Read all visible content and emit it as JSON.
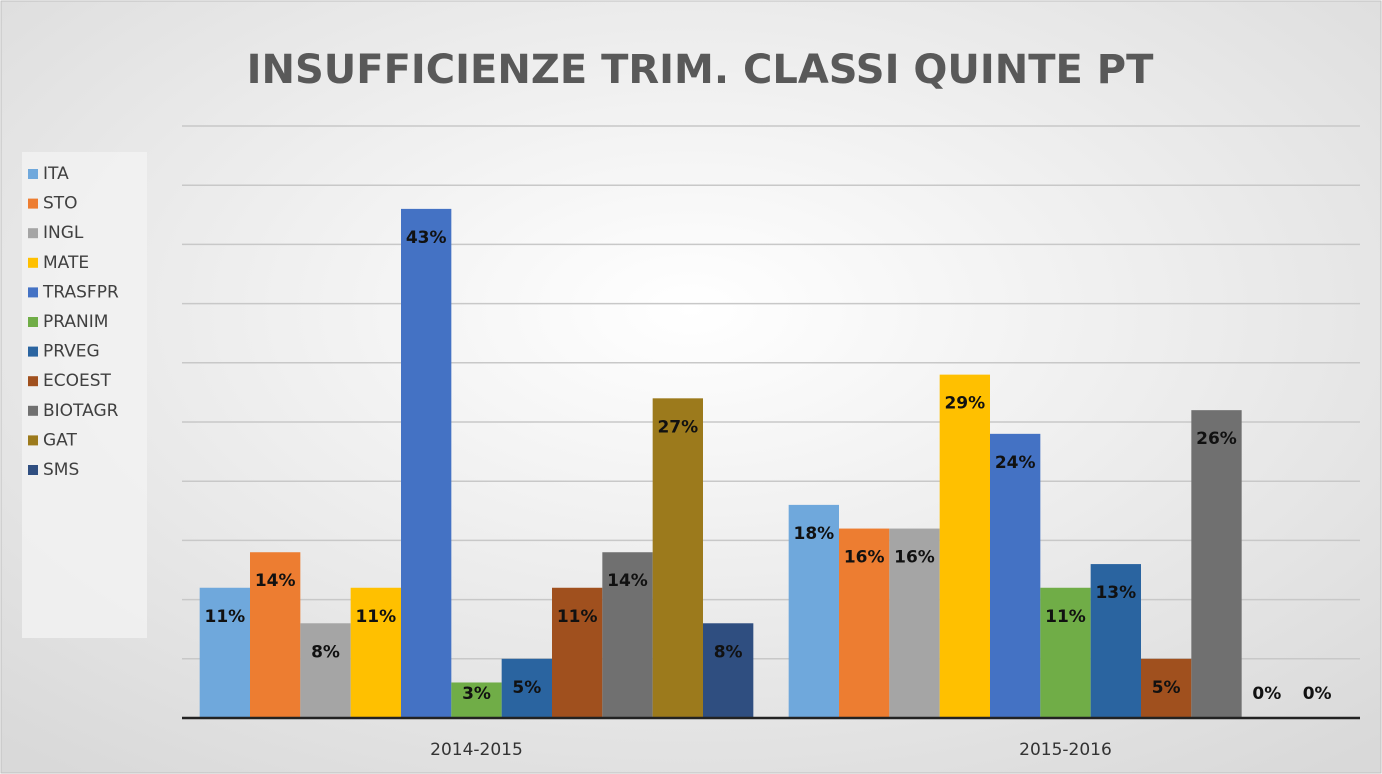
{
  "chart_data": {
    "type": "bar",
    "title": "INSUFFICIENZE TRIM. CLASSI QUINTE PT",
    "categories": [
      "2014-2015",
      "2015-2016"
    ],
    "series": [
      {
        "name": "ITA",
        "color": "#6fa8dc",
        "values": [
          11,
          18
        ],
        "value_labels": [
          "11%",
          "18%"
        ]
      },
      {
        "name": "STO",
        "color": "#ed7d31",
        "values": [
          14,
          16
        ],
        "value_labels": [
          "14%",
          "16%"
        ]
      },
      {
        "name": "INGL",
        "color": "#a5a5a5",
        "values": [
          8,
          16
        ],
        "value_labels": [
          "8%",
          "16%"
        ]
      },
      {
        "name": "MATE",
        "color": "#ffc000",
        "values": [
          11,
          29
        ],
        "value_labels": [
          "11%",
          "29%"
        ]
      },
      {
        "name": "TRASFPR",
        "color": "#4472c4",
        "values": [
          43,
          24
        ],
        "value_labels": [
          "43%",
          "24%"
        ]
      },
      {
        "name": "PRANIM",
        "color": "#70ad47",
        "values": [
          3,
          11
        ],
        "value_labels": [
          "3%",
          "11%"
        ]
      },
      {
        "name": "PRVEG",
        "color": "#2a64a0",
        "values": [
          5,
          13
        ],
        "value_labels": [
          "5%",
          "13%"
        ]
      },
      {
        "name": "ECOEST",
        "color": "#a0501e",
        "values": [
          11,
          5
        ],
        "value_labels": [
          "11%",
          "5%"
        ]
      },
      {
        "name": "BIOTAGR",
        "color": "#707070",
        "values": [
          14,
          26
        ],
        "value_labels": [
          "14%",
          "26%"
        ]
      },
      {
        "name": "GAT",
        "color": "#9c7a1c",
        "values": [
          27,
          0
        ],
        "value_labels": [
          "27%",
          "0%"
        ]
      },
      {
        "name": "SMS",
        "color": "#2f4e80",
        "values": [
          8,
          0
        ],
        "value_labels": [
          "8%",
          "0%"
        ]
      }
    ],
    "ylim": [
      0,
      50
    ],
    "yticks": [
      0,
      5,
      10,
      15,
      20,
      25,
      30,
      35,
      40,
      45,
      50
    ],
    "grid": true,
    "legend": "left"
  }
}
